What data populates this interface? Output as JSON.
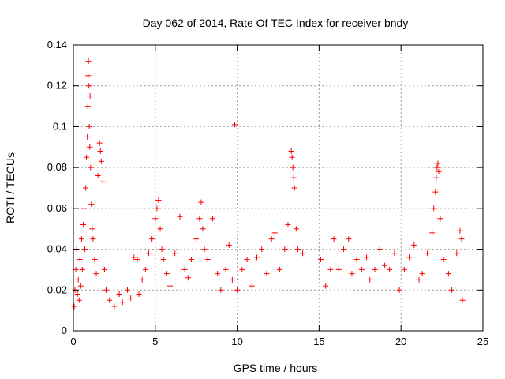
{
  "chart_data": {
    "type": "scatter",
    "title": "Day 062 of 2014, Rate Of TEC Index for receiver bndy",
    "xlabel": "GPS time / hours",
    "ylabel": "ROTI / TECUs",
    "xlim": [
      0,
      25
    ],
    "ylim": [
      0,
      0.14
    ],
    "grid": true,
    "marker": "+",
    "marker_color": "#ff0000",
    "x_ticks": [
      0,
      5,
      10,
      15,
      20,
      25
    ],
    "x_tick_labels": [
      "0",
      "5",
      "10",
      "15",
      "20",
      "25"
    ],
    "y_ticks": [
      0,
      0.02,
      0.04,
      0.06,
      0.08,
      0.1,
      0.12,
      0.14
    ],
    "y_tick_labels": [
      "0",
      "0.02",
      "0.04",
      "0.06",
      "0.08",
      "0.1",
      "0.12",
      "0.14"
    ],
    "series": [
      {
        "name": "ROTI",
        "points": [
          [
            0.05,
            0.012
          ],
          [
            0.1,
            0.02
          ],
          [
            0.15,
            0.03
          ],
          [
            0.2,
            0.04
          ],
          [
            0.25,
            0.018
          ],
          [
            0.3,
            0.025
          ],
          [
            0.35,
            0.015
          ],
          [
            0.4,
            0.035
          ],
          [
            0.45,
            0.022
          ],
          [
            0.5,
            0.045
          ],
          [
            0.55,
            0.03
          ],
          [
            0.6,
            0.052
          ],
          [
            0.65,
            0.06
          ],
          [
            0.7,
            0.04
          ],
          [
            0.75,
            0.07
          ],
          [
            0.8,
            0.085
          ],
          [
            0.85,
            0.095
          ],
          [
            0.88,
            0.11
          ],
          [
            0.9,
            0.125
          ],
          [
            0.92,
            0.132
          ],
          [
            0.95,
            0.12
          ],
          [
            0.97,
            0.1
          ],
          [
            1.0,
            0.09
          ],
          [
            1.02,
            0.115
          ],
          [
            1.05,
            0.08
          ],
          [
            1.1,
            0.062
          ],
          [
            1.15,
            0.05
          ],
          [
            1.2,
            0.045
          ],
          [
            1.3,
            0.035
          ],
          [
            1.4,
            0.028
          ],
          [
            1.5,
            0.076
          ],
          [
            1.6,
            0.092
          ],
          [
            1.65,
            0.088
          ],
          [
            1.7,
            0.083
          ],
          [
            1.8,
            0.073
          ],
          [
            1.9,
            0.03
          ],
          [
            2.0,
            0.02
          ],
          [
            2.2,
            0.015
          ],
          [
            2.5,
            0.012
          ],
          [
            2.8,
            0.018
          ],
          [
            3.0,
            0.014
          ],
          [
            3.3,
            0.02
          ],
          [
            3.5,
            0.016
          ],
          [
            3.7,
            0.036
          ],
          [
            3.9,
            0.035
          ],
          [
            4.0,
            0.018
          ],
          [
            4.2,
            0.025
          ],
          [
            4.4,
            0.03
          ],
          [
            4.6,
            0.038
          ],
          [
            4.8,
            0.045
          ],
          [
            5.0,
            0.055
          ],
          [
            5.1,
            0.06
          ],
          [
            5.2,
            0.064
          ],
          [
            5.3,
            0.05
          ],
          [
            5.4,
            0.04
          ],
          [
            5.5,
            0.035
          ],
          [
            5.7,
            0.028
          ],
          [
            5.9,
            0.022
          ],
          [
            6.2,
            0.038
          ],
          [
            6.5,
            0.056
          ],
          [
            6.8,
            0.03
          ],
          [
            7.0,
            0.026
          ],
          [
            7.2,
            0.035
          ],
          [
            7.5,
            0.045
          ],
          [
            7.7,
            0.055
          ],
          [
            7.8,
            0.063
          ],
          [
            7.9,
            0.05
          ],
          [
            8.0,
            0.04
          ],
          [
            8.2,
            0.035
          ],
          [
            8.5,
            0.055
          ],
          [
            8.8,
            0.028
          ],
          [
            9.0,
            0.02
          ],
          [
            9.3,
            0.03
          ],
          [
            9.5,
            0.042
          ],
          [
            9.7,
            0.025
          ],
          [
            9.85,
            0.101
          ],
          [
            10.0,
            0.02
          ],
          [
            10.3,
            0.03
          ],
          [
            10.6,
            0.035
          ],
          [
            10.9,
            0.022
          ],
          [
            11.2,
            0.036
          ],
          [
            11.5,
            0.04
          ],
          [
            11.8,
            0.028
          ],
          [
            12.1,
            0.045
          ],
          [
            12.3,
            0.048
          ],
          [
            12.6,
            0.03
          ],
          [
            12.9,
            0.04
          ],
          [
            13.1,
            0.052
          ],
          [
            13.3,
            0.088
          ],
          [
            13.35,
            0.085
          ],
          [
            13.4,
            0.08
          ],
          [
            13.45,
            0.075
          ],
          [
            13.5,
            0.07
          ],
          [
            13.6,
            0.05
          ],
          [
            13.7,
            0.04
          ],
          [
            14.0,
            0.038
          ],
          [
            15.1,
            0.035
          ],
          [
            15.4,
            0.022
          ],
          [
            15.7,
            0.03
          ],
          [
            15.9,
            0.045
          ],
          [
            16.2,
            0.03
          ],
          [
            16.5,
            0.04
          ],
          [
            16.8,
            0.045
          ],
          [
            17.0,
            0.028
          ],
          [
            17.3,
            0.035
          ],
          [
            17.6,
            0.03
          ],
          [
            17.9,
            0.036
          ],
          [
            18.1,
            0.025
          ],
          [
            18.4,
            0.03
          ],
          [
            18.7,
            0.04
          ],
          [
            19.0,
            0.032
          ],
          [
            19.3,
            0.03
          ],
          [
            19.6,
            0.038
          ],
          [
            19.9,
            0.02
          ],
          [
            20.2,
            0.03
          ],
          [
            20.5,
            0.036
          ],
          [
            20.8,
            0.042
          ],
          [
            21.1,
            0.025
          ],
          [
            21.3,
            0.028
          ],
          [
            21.6,
            0.038
          ],
          [
            21.9,
            0.048
          ],
          [
            22.0,
            0.06
          ],
          [
            22.1,
            0.068
          ],
          [
            22.15,
            0.075
          ],
          [
            22.2,
            0.08
          ],
          [
            22.25,
            0.082
          ],
          [
            22.3,
            0.078
          ],
          [
            22.4,
            0.055
          ],
          [
            22.6,
            0.035
          ],
          [
            22.9,
            0.028
          ],
          [
            23.1,
            0.02
          ],
          [
            23.4,
            0.038
          ],
          [
            23.6,
            0.049
          ],
          [
            23.7,
            0.045
          ],
          [
            23.75,
            0.015
          ]
        ]
      }
    ]
  }
}
